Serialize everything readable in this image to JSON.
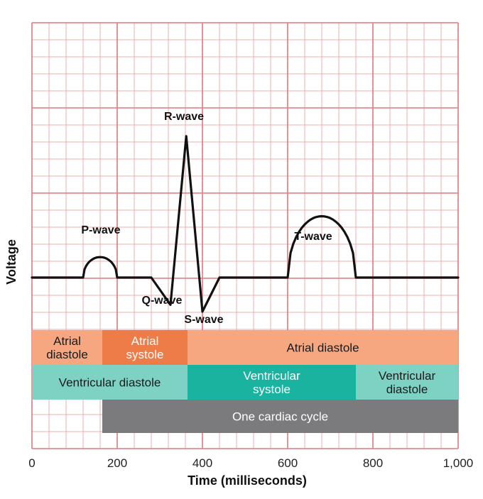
{
  "chart_data": {
    "type": "line",
    "xlabel": "Time (milliseconds)",
    "ylabel": "Voltage",
    "xlim": [
      0,
      1000
    ],
    "x_ticks": [
      "0",
      "200",
      "400",
      "600",
      "800",
      "1,000"
    ],
    "x_tick_values": [
      0,
      200,
      400,
      600,
      800,
      1000
    ],
    "grid": true,
    "waves": [
      {
        "label": "P-wave",
        "x": 160
      },
      {
        "label": "R-wave",
        "x": 362
      },
      {
        "label": "Q-wave",
        "x": 325
      },
      {
        "label": "S-wave",
        "x": 400
      },
      {
        "label": "T-wave",
        "x": 680
      }
    ],
    "trace": [
      [
        0,
        0
      ],
      [
        120,
        0
      ],
      [
        128,
        0.6
      ],
      [
        145,
        1.1
      ],
      [
        160,
        1.2
      ],
      [
        175,
        1.1
      ],
      [
        192,
        0.6
      ],
      [
        200,
        0
      ],
      [
        280,
        0
      ],
      [
        325,
        -1.6
      ],
      [
        362,
        8.3
      ],
      [
        400,
        -2.0
      ],
      [
        440,
        0
      ],
      [
        600,
        0
      ],
      [
        612,
        1.4
      ],
      [
        640,
        3.0
      ],
      [
        680,
        3.6
      ],
      [
        720,
        3.0
      ],
      [
        748,
        1.4
      ],
      [
        760,
        0
      ],
      [
        1000,
        0
      ]
    ],
    "phase_rows": [
      {
        "name": "atrial",
        "segments": [
          {
            "label": "Atrial diastole",
            "lines": [
              "Atrial",
              "diastole"
            ],
            "start": 0,
            "end": 165,
            "color": "#f6a77f",
            "text_color": "#1a1a1a"
          },
          {
            "label": "Atrial systole",
            "lines": [
              "Atrial",
              "systole"
            ],
            "start": 165,
            "end": 365,
            "color": "#ee7c48",
            "text_color": "#ffffff"
          },
          {
            "label": "Atrial diastole",
            "lines": [
              "Atrial diastole"
            ],
            "start": 365,
            "end": 1000,
            "color": "#f6a77f",
            "text_color": "#1a1a1a"
          }
        ]
      },
      {
        "name": "ventricular",
        "segments": [
          {
            "label": "Ventricular diastole",
            "lines": [
              "Ventricular diastole"
            ],
            "start": 0,
            "end": 365,
            "color": "#7dd2c4",
            "text_color": "#1a1a1a"
          },
          {
            "label": "Ventricular systole",
            "lines": [
              "Ventricular",
              "systole"
            ],
            "start": 365,
            "end": 760,
            "color": "#1ab3a0",
            "text_color": "#ffffff"
          },
          {
            "label": "Ventricular diastole",
            "lines": [
              "Ventricular",
              "diastole"
            ],
            "start": 760,
            "end": 1000,
            "color": "#7dd2c4",
            "text_color": "#1a1a1a"
          }
        ]
      },
      {
        "name": "cycle",
        "segments": [
          {
            "label": "One cardiac cycle",
            "lines": [
              "One cardiac cycle"
            ],
            "start": 165,
            "end": 1000,
            "color": "#7b7b7d",
            "text_color": "#ffffff"
          }
        ]
      }
    ],
    "colors": {
      "grid_major": "#e0787d",
      "grid_minor": "#eeaeae",
      "trace": "#111111"
    }
  }
}
